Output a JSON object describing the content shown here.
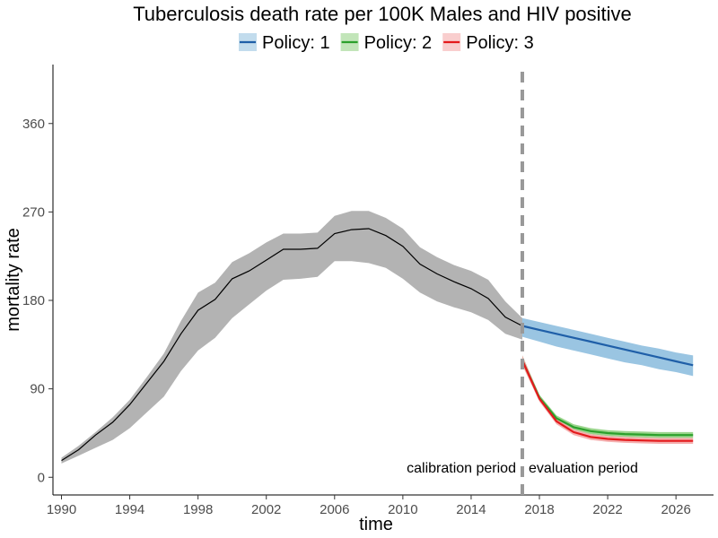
{
  "chart_data": {
    "type": "line",
    "title": "Tuberculosis death rate per 100K Males and HIV positive",
    "xlabel": "time",
    "ylabel": "mortality rate",
    "xlim": [
      1989.5,
      2028.2
    ],
    "ylim": [
      -18,
      420
    ],
    "xticks": [
      1990,
      1994,
      1998,
      2002,
      2006,
      2010,
      2014,
      2018,
      2022,
      2026
    ],
    "yticks": [
      0,
      90,
      180,
      270,
      360
    ],
    "grid": false,
    "legend_position": "top",
    "legend": [
      {
        "label": "Policy: 1",
        "color": "#1f5fa8",
        "fill": "#8fbfdf"
      },
      {
        "label": "Policy: 2",
        "color": "#2ca02c",
        "fill": "#8fd07f"
      },
      {
        "label": "Policy: 3",
        "color": "#e41a1c",
        "fill": "#f4a6a6"
      }
    ],
    "vline": {
      "x": 2017,
      "color": "#999999"
    },
    "annotations": {
      "left": "calibration period",
      "right": "evaluation period"
    },
    "calibration": {
      "color": "#000000",
      "fill": "#b3b3b3",
      "x": [
        1990,
        1991,
        1992,
        1993,
        1994,
        1995,
        1996,
        1997,
        1998,
        1999,
        2000,
        2001,
        2002,
        2003,
        2004,
        2005,
        2006,
        2007,
        2008,
        2009,
        2010,
        2011,
        2012,
        2013,
        2014,
        2015,
        2016,
        2017
      ],
      "y": [
        17,
        28,
        43,
        56,
        74,
        96,
        118,
        146,
        170,
        181,
        202,
        210,
        221,
        232,
        232,
        233,
        248,
        252,
        253,
        246,
        235,
        217,
        207,
        199,
        192,
        182,
        163,
        154
      ],
      "lower": [
        14,
        22,
        30,
        38,
        50,
        66,
        82,
        108,
        129,
        142,
        162,
        176,
        190,
        201,
        202,
        204,
        220,
        220,
        218,
        213,
        202,
        188,
        179,
        173,
        168,
        160,
        146,
        140
      ],
      "upper": [
        20,
        32,
        46,
        61,
        79,
        102,
        126,
        159,
        188,
        198,
        219,
        228,
        239,
        248,
        248,
        249,
        266,
        271,
        271,
        264,
        253,
        234,
        224,
        216,
        210,
        201,
        179,
        162
      ]
    },
    "series": [
      {
        "name": "Policy: 1",
        "x": [
          2017,
          2018,
          2019,
          2020,
          2021,
          2022,
          2023,
          2024,
          2025,
          2026,
          2027
        ],
        "y": [
          154,
          150,
          146,
          142,
          138,
          134,
          130,
          126,
          122,
          118,
          114
        ],
        "lower": [
          143,
          138,
          133,
          129,
          125,
          121,
          117,
          114,
          110,
          107,
          103
        ],
        "upper": [
          162,
          158,
          154,
          150,
          146,
          142,
          138,
          134,
          131,
          127,
          124
        ]
      },
      {
        "name": "Policy: 2",
        "x": [
          2017,
          2018,
          2019,
          2020,
          2021,
          2022,
          2023,
          2024,
          2025,
          2026,
          2027
        ],
        "y": [
          119,
          81,
          60,
          51,
          47,
          45,
          44,
          43.5,
          43,
          43,
          43
        ],
        "lower": [
          114,
          78,
          57,
          48,
          44,
          42,
          41,
          40.5,
          40,
          40,
          40
        ],
        "upper": [
          124,
          84,
          63,
          54,
          50,
          48,
          47,
          46.5,
          46,
          46,
          46
        ]
      },
      {
        "name": "Policy: 3",
        "x": [
          2017,
          2018,
          2019,
          2020,
          2021,
          2022,
          2023,
          2024,
          2025,
          2026,
          2027
        ],
        "y": [
          119,
          80,
          57,
          46,
          41,
          39,
          38,
          37.5,
          37,
          37,
          37
        ],
        "lower": [
          114,
          77,
          54,
          43,
          38,
          36,
          35,
          34.5,
          34,
          34,
          34
        ],
        "upper": [
          124,
          83,
          60,
          49,
          44,
          42,
          41,
          40.5,
          40,
          40,
          40
        ]
      }
    ]
  }
}
